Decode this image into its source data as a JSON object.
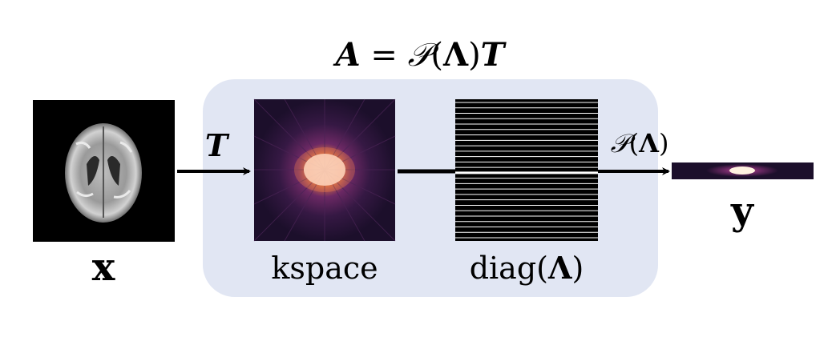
{
  "title": {
    "lhs": "A",
    "eq": " = ",
    "P": "𝒫",
    "open": "(",
    "Lambda": "Λ",
    "close": ")",
    "T": "T"
  },
  "input": {
    "label": "x"
  },
  "transform": {
    "label": "T"
  },
  "kspace": {
    "label": "kspace"
  },
  "mask": {
    "label_fn": "diag",
    "label_open": "(",
    "label_arg": "Λ",
    "label_close": ")",
    "line_count": 26,
    "highlight_line_index": 13
  },
  "sampling": {
    "label_P": "𝒫",
    "label_open": "(",
    "label_arg": "Λ",
    "label_close": ")"
  },
  "output": {
    "label": "y"
  },
  "colors": {
    "operator_box": "#e1e6f3",
    "mask_bg": "#000000",
    "mask_line": "#ffffff",
    "kspace_core": "#fff6ea",
    "kspace_glow": "#f07d4a",
    "kspace_halo": "#7a2d6e",
    "kspace_bg": "#1c0f2b",
    "arrow": "#000000"
  }
}
